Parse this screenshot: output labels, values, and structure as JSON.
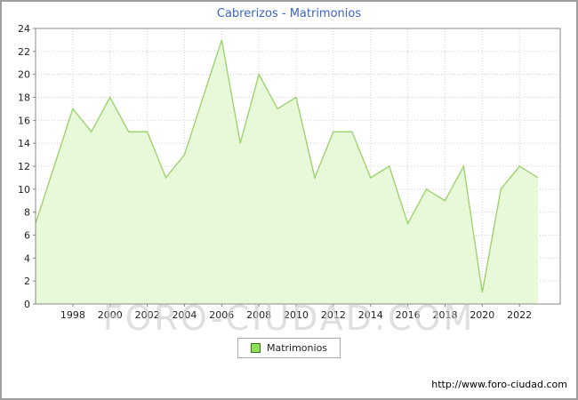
{
  "title": "Cabrerizos - Matrimonios",
  "watermark": "FORO-CIUDAD.COM",
  "legend": {
    "label": "Matrimonios"
  },
  "footer": {
    "url": "http://www.foro-ciudad.com"
  },
  "colors": {
    "title": "#3c64c8",
    "grid": "#e2cccc",
    "area_fill": "#e7f9d9",
    "area_line": "#9cd470",
    "legend_swatch": "#8ce05a",
    "legend_swatch_border": "#3c6e1e",
    "axis": "#888888",
    "text": "#222222"
  },
  "chart_data": {
    "type": "area",
    "title": "Cabrerizos - Matrimonios",
    "x": [
      1996,
      1997,
      1998,
      1999,
      2000,
      2001,
      2002,
      2003,
      2004,
      2005,
      2006,
      2007,
      2008,
      2009,
      2010,
      2011,
      2012,
      2013,
      2014,
      2015,
      2016,
      2017,
      2018,
      2019,
      2020,
      2021,
      2022,
      2023
    ],
    "values": [
      7,
      12,
      17,
      15,
      18,
      15,
      15,
      11,
      13,
      18,
      23,
      14,
      20,
      17,
      18,
      11,
      15,
      15,
      11,
      12,
      7,
      10,
      9,
      12,
      1,
      10,
      12,
      11
    ],
    "ylim": [
      0,
      24
    ],
    "ytick_step": 2,
    "xticks": [
      1998,
      2000,
      2002,
      2004,
      2006,
      2008,
      2010,
      2012,
      2014,
      2016,
      2018,
      2020,
      2022
    ],
    "xlabel": "",
    "ylabel": "",
    "legend": [
      "Matrimonios"
    ],
    "legend_position": "bottom",
    "grid": true
  }
}
